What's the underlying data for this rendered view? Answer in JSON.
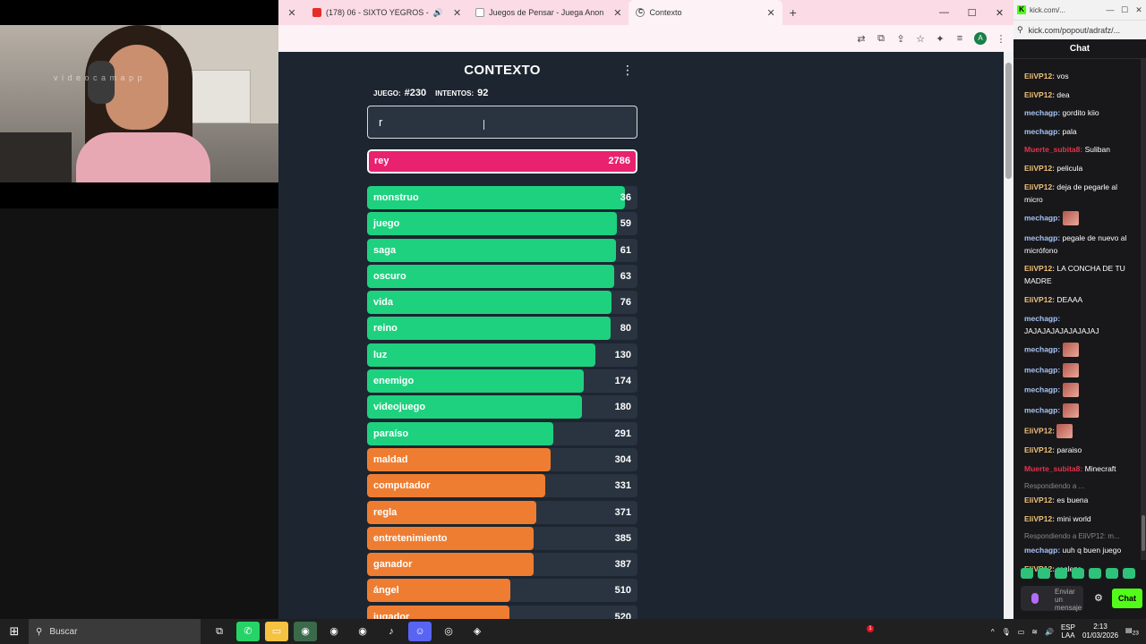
{
  "webcam": {
    "watermark": "v  i  d  e  o  c  a  m  a  p  p"
  },
  "browser": {
    "tabs": [
      {
        "label": "(178) 06 - SIXTO YEGROS -"
      },
      {
        "label": "Juegos de Pensar - Juega Anon"
      },
      {
        "label": "Contexto"
      }
    ],
    "close_glyph": "✕",
    "new_tab_glyph": "+",
    "profile_initial": "A"
  },
  "game": {
    "title": "CONTEXTO",
    "game_label": "JUEGO:",
    "game_number": "#230",
    "attempts_label": "INTENTOS:",
    "attempts": "92",
    "input_value": "r",
    "current_guess": {
      "word": "rey",
      "rank": 2786,
      "fill": 1.0,
      "color": "#e8226f"
    },
    "colors": {
      "green": "#1ed17f",
      "orange": "#ef7d31",
      "pink": "#e8226f",
      "row_bg": "#2a3440"
    },
    "guesses": [
      {
        "word": "monstruo",
        "rank": 36,
        "fill": 0.955,
        "color": "#1ed17f"
      },
      {
        "word": "juego",
        "rank": 59,
        "fill": 0.925,
        "color": "#1ed17f"
      },
      {
        "word": "saga",
        "rank": 61,
        "fill": 0.92,
        "color": "#1ed17f"
      },
      {
        "word": "oscuro",
        "rank": 63,
        "fill": 0.915,
        "color": "#1ed17f"
      },
      {
        "word": "vida",
        "rank": 76,
        "fill": 0.905,
        "color": "#1ed17f"
      },
      {
        "word": "reino",
        "rank": 80,
        "fill": 0.9,
        "color": "#1ed17f"
      },
      {
        "word": "luz",
        "rank": 130,
        "fill": 0.845,
        "color": "#1ed17f"
      },
      {
        "word": "enemigo",
        "rank": 174,
        "fill": 0.8,
        "color": "#1ed17f"
      },
      {
        "word": "videojuego",
        "rank": 180,
        "fill": 0.795,
        "color": "#1ed17f"
      },
      {
        "word": "paraíso",
        "rank": 291,
        "fill": 0.69,
        "color": "#1ed17f"
      },
      {
        "word": "maldad",
        "rank": 304,
        "fill": 0.68,
        "color": "#ef7d31"
      },
      {
        "word": "computador",
        "rank": 331,
        "fill": 0.66,
        "color": "#ef7d31"
      },
      {
        "word": "regla",
        "rank": 371,
        "fill": 0.625,
        "color": "#ef7d31"
      },
      {
        "word": "entretenimiento",
        "rank": 385,
        "fill": 0.615,
        "color": "#ef7d31"
      },
      {
        "word": "ganador",
        "rank": 387,
        "fill": 0.615,
        "color": "#ef7d31"
      },
      {
        "word": "ángel",
        "rank": 510,
        "fill": 0.53,
        "color": "#ef7d31"
      },
      {
        "word": "jugador",
        "rank": 520,
        "fill": 0.525,
        "color": "#ef7d31"
      }
    ]
  },
  "chat": {
    "window_title": "kick.com/...",
    "url": "kick.com/popout/adrafz/...",
    "header": "Chat",
    "messages": [
      {
        "user": "EliVP12:",
        "color": "#f0c27a",
        "text": "vos"
      },
      {
        "user": "EliVP12:",
        "color": "#f0c27a",
        "text": "dea"
      },
      {
        "user": "mechagp:",
        "color": "#a7c4f5",
        "text": "gordito kiio"
      },
      {
        "user": "mechagp:",
        "color": "#a7c4f5",
        "text": "pala"
      },
      {
        "user": "Muerte_subita8:",
        "color": "#e6334a",
        "text": "Suliban"
      },
      {
        "user": "EliVP12:",
        "color": "#f0c27a",
        "text": "pelicula"
      },
      {
        "user": "EliVP12:",
        "color": "#f0c27a",
        "text": "deja de pegarle al micro"
      },
      {
        "user": "mechagp:",
        "color": "#a7c4f5",
        "text": "",
        "emote": true
      },
      {
        "user": "mechagp:",
        "color": "#a7c4f5",
        "text": "pegale de nuevo al micrófono"
      },
      {
        "user": "EliVP12:",
        "color": "#f0c27a",
        "text": "LA CONCHA DE TU MADRE"
      },
      {
        "user": "EliVP12:",
        "color": "#f0c27a",
        "text": "DEAAA"
      },
      {
        "user": "mechagp:",
        "color": "#a7c4f5",
        "text": "JAJAJAJAJAJAJAJAJ"
      },
      {
        "user": "mechagp:",
        "color": "#a7c4f5",
        "text": "",
        "emote": true
      },
      {
        "user": "mechagp:",
        "color": "#a7c4f5",
        "text": "",
        "emote": true
      },
      {
        "user": "mechagp:",
        "color": "#a7c4f5",
        "text": "",
        "emote": true
      },
      {
        "user": "mechagp:",
        "color": "#a7c4f5",
        "text": "",
        "emote": true
      },
      {
        "user": "EliVP12:",
        "color": "#f0c27a",
        "text": "",
        "emote": true
      },
      {
        "user": "EliVP12:",
        "color": "#f0c27a",
        "text": "paraiso"
      },
      {
        "user": "Muerte_subita8:",
        "color": "#e6334a",
        "text": "Minecraft"
      },
      {
        "user": "EliVP12:",
        "color": "#f0c27a",
        "text": "es buena",
        "reply": "Respondiendo a ..."
      },
      {
        "user": "EliVP12:",
        "color": "#f0c27a",
        "text": "mini world"
      },
      {
        "user": "mechagp:",
        "color": "#a7c4f5",
        "text": "uuh q buen juego",
        "reply": "Respondiendo a EliVP12: m..."
      },
      {
        "user": "EliVP12:",
        "color": "#f0c27a",
        "text": "realeza"
      }
    ],
    "input_placeholder": "Enviar un mensaje",
    "send_label": "Chat"
  },
  "taskbar": {
    "search_label": "Buscar",
    "lang_top": "ESP",
    "lang_bottom": "LAA",
    "time": "2:13",
    "date": "01/03/2026",
    "notif_count": "23",
    "badge_count": "1"
  }
}
